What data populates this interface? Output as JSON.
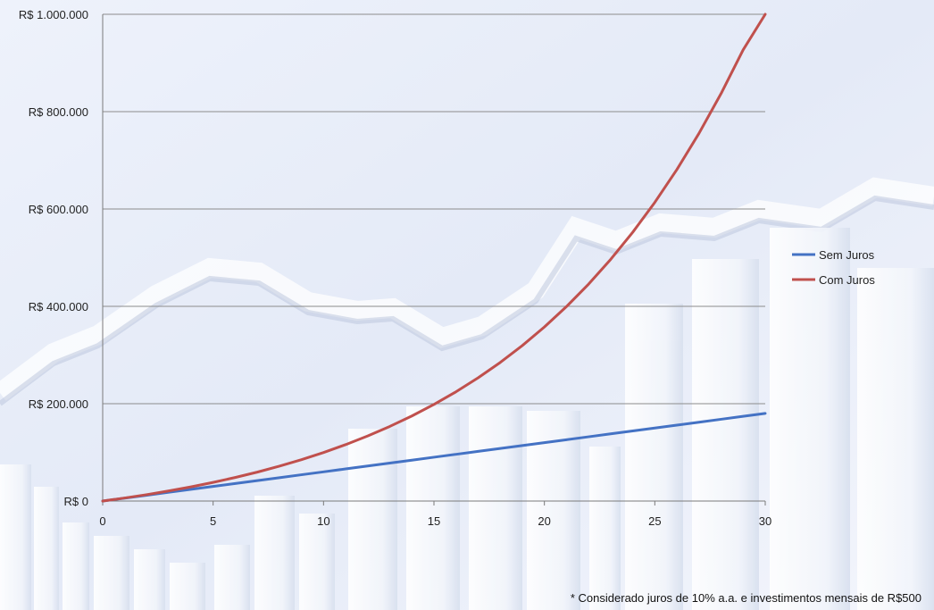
{
  "chart_data": {
    "type": "line",
    "title": "",
    "xlabel": "",
    "ylabel": "",
    "x": [
      0,
      1,
      2,
      3,
      4,
      5,
      6,
      7,
      8,
      9,
      10,
      11,
      12,
      13,
      14,
      15,
      16,
      17,
      18,
      19,
      20,
      21,
      22,
      23,
      24,
      25,
      26,
      27,
      28,
      29,
      30
    ],
    "xlim": [
      0,
      30
    ],
    "x_ticks": [
      0,
      5,
      10,
      15,
      20,
      25,
      30
    ],
    "ylim": [
      0,
      1000000
    ],
    "y_ticks": [
      0,
      200000,
      400000,
      600000,
      800000,
      1000000
    ],
    "y_tick_labels": [
      "R$ 0",
      "R$ 200.000",
      "R$ 400.000",
      "R$ 600.000",
      "R$ 800.000",
      "R$ 1.000.000"
    ],
    "grid": "horizontal",
    "legend_position": "right",
    "series": [
      {
        "name": "Sem Juros",
        "color": "#4472C4",
        "values": [
          0,
          6000,
          12000,
          18000,
          24000,
          30000,
          36000,
          42000,
          48000,
          54000,
          60000,
          66000,
          72000,
          78000,
          84000,
          90000,
          96000,
          102000,
          108000,
          114000,
          120000,
          126000,
          132000,
          138000,
          144000,
          150000,
          156000,
          162000,
          168000,
          174000,
          180000
        ]
      },
      {
        "name": "Com Juros",
        "color": "#C0504D",
        "values": [
          0,
          6300,
          13200,
          20800,
          29100,
          38300,
          48400,
          59400,
          71600,
          85000,
          99700,
          115900,
          133700,
          153300,
          174800,
          198500,
          224500,
          253200,
          284700,
          319400,
          357600,
          399500,
          445600,
          496400,
          552200,
          613600,
          681100,
          755400,
          837100,
          927000,
          1000000
        ]
      }
    ]
  },
  "footnote": "* Considerado  juros de 10% a.a. e investimentos mensais de R$500"
}
